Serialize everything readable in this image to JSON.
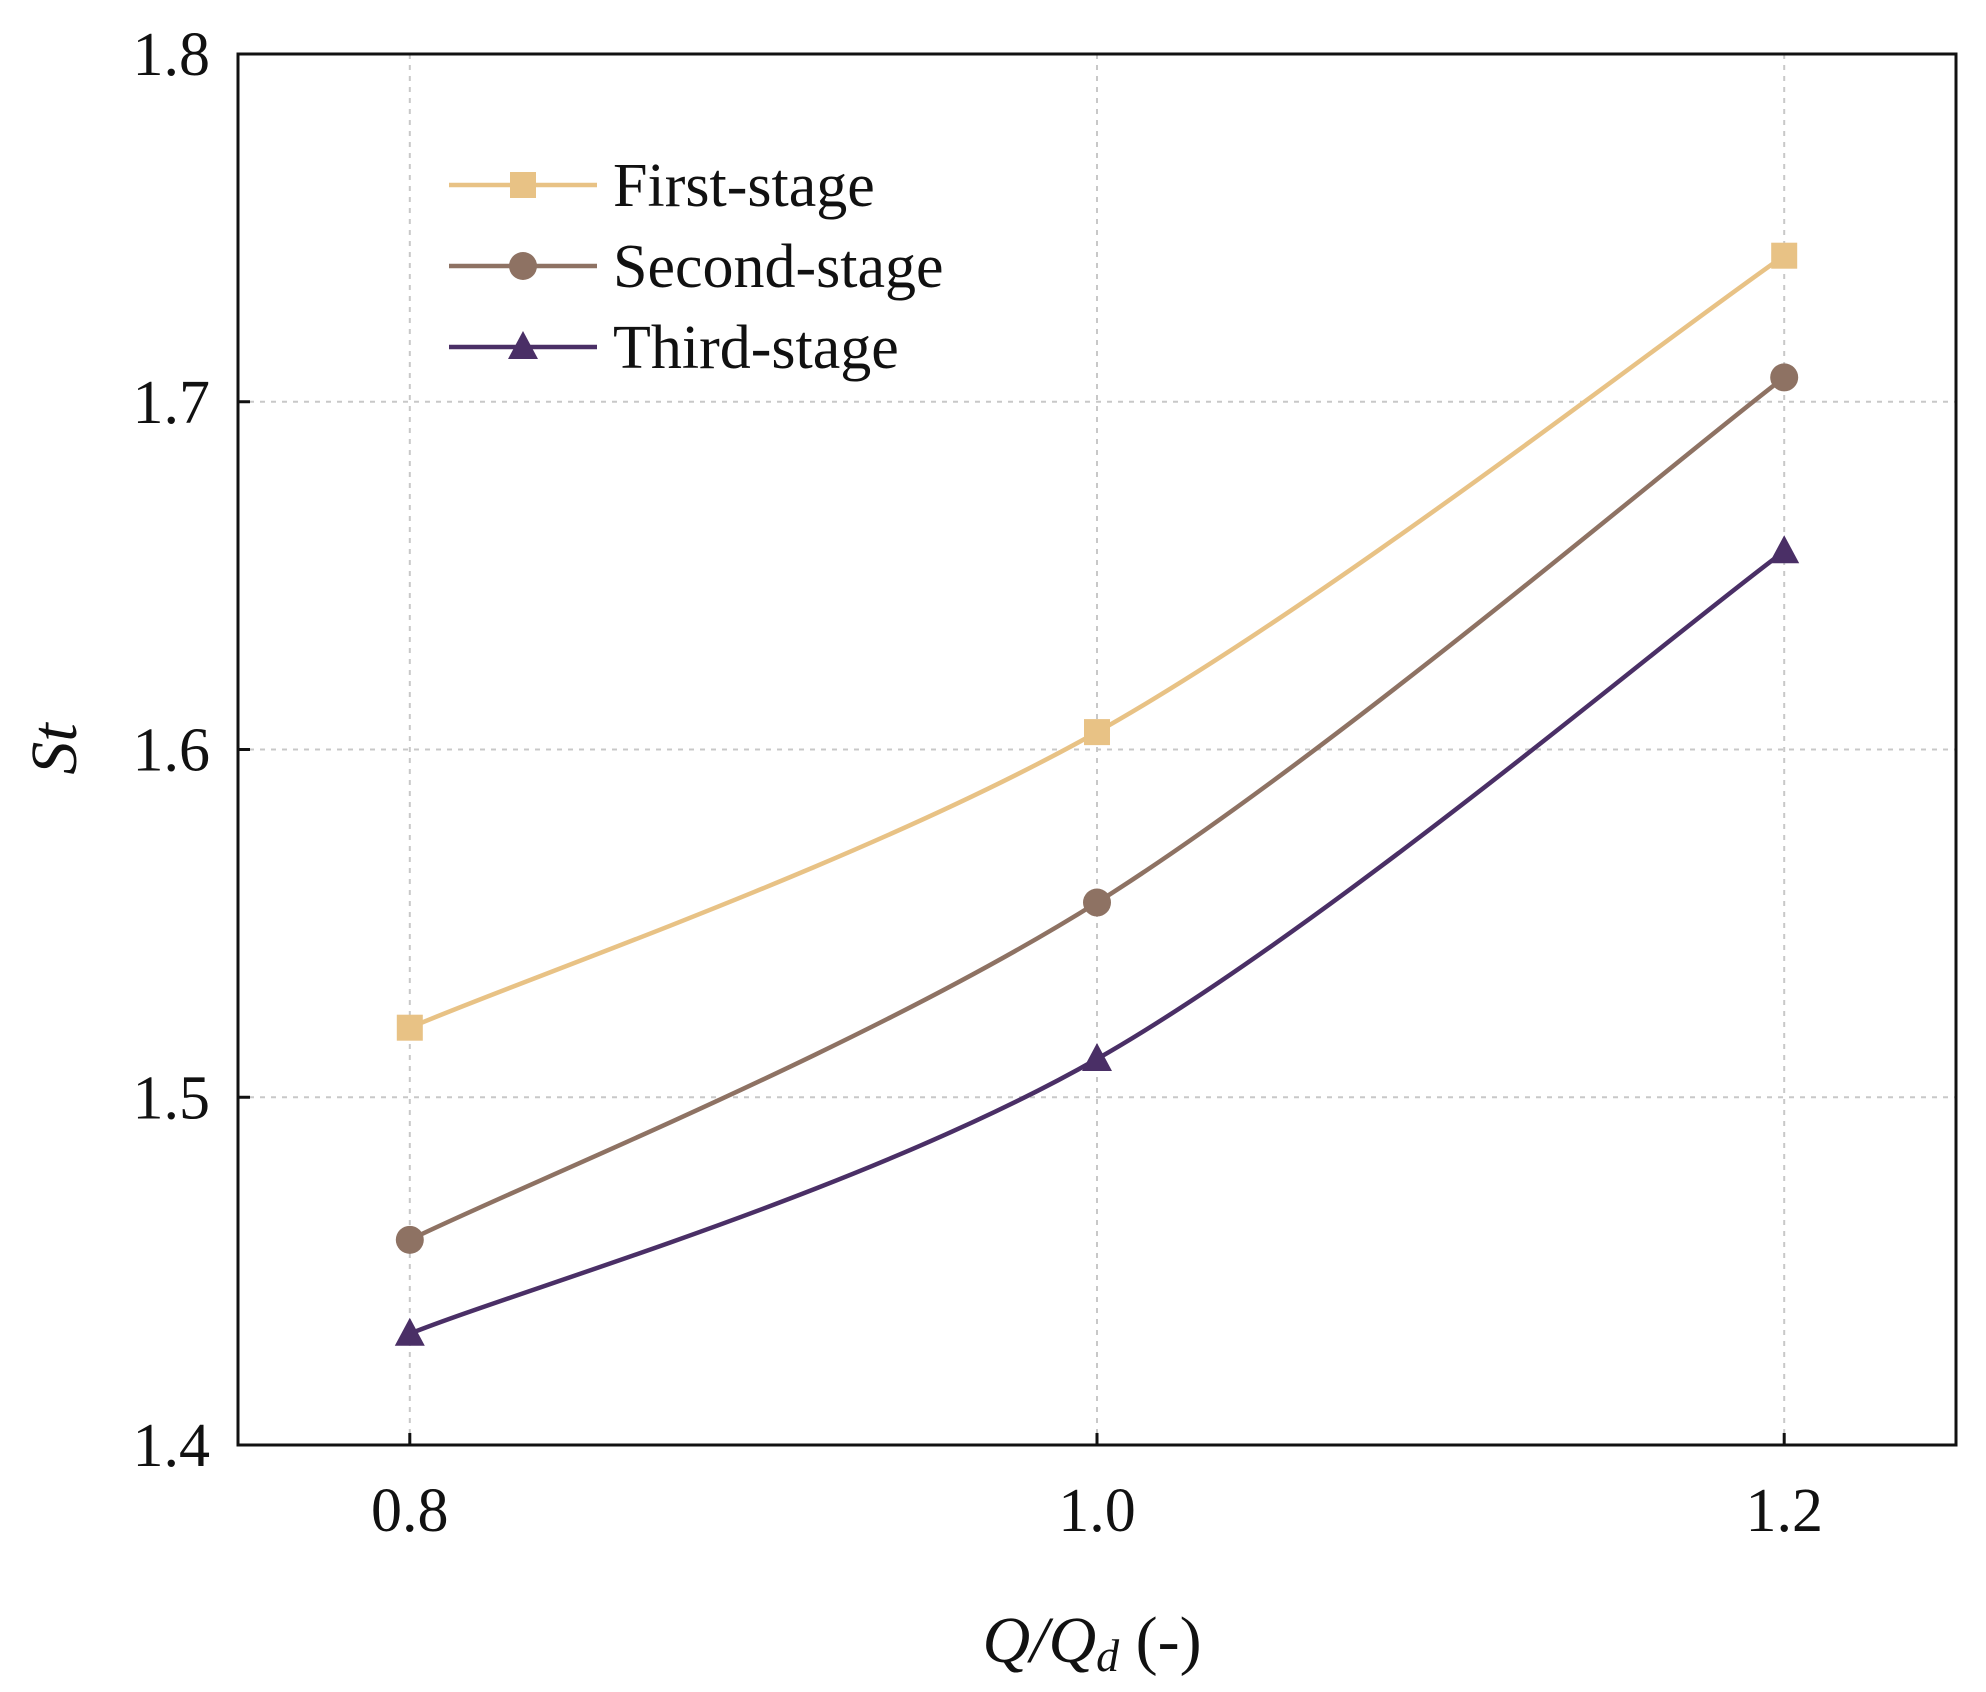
{
  "chart_data": {
    "type": "line",
    "title": "",
    "xlabel": {
      "main": "Q/Q",
      "subscript": "d",
      "unit": " (-)"
    },
    "ylabel": "St",
    "x": [
      0.8,
      1.0,
      1.2
    ],
    "x_tick_labels": [
      "0.8",
      "1.0",
      "1.2"
    ],
    "xlim": [
      0.75,
      1.25
    ],
    "ylim": [
      1.4,
      1.8
    ],
    "y_ticks": [
      1.4,
      1.5,
      1.6,
      1.7,
      1.8
    ],
    "y_tick_labels": [
      "1.4",
      "1.5",
      "1.6",
      "1.7",
      "1.8"
    ],
    "grid": true,
    "legend_position": "top-left",
    "series": [
      {
        "name": "First-stage",
        "values": [
          1.52,
          1.605,
          1.742
        ],
        "color": "#E8C285",
        "marker": "square"
      },
      {
        "name": "Second-stage",
        "values": [
          1.459,
          1.556,
          1.707
        ],
        "color": "#8E7263",
        "marker": "circle"
      },
      {
        "name": "Third-stage",
        "values": [
          1.432,
          1.511,
          1.657
        ],
        "color": "#4A2F66",
        "marker": "triangle"
      }
    ]
  }
}
